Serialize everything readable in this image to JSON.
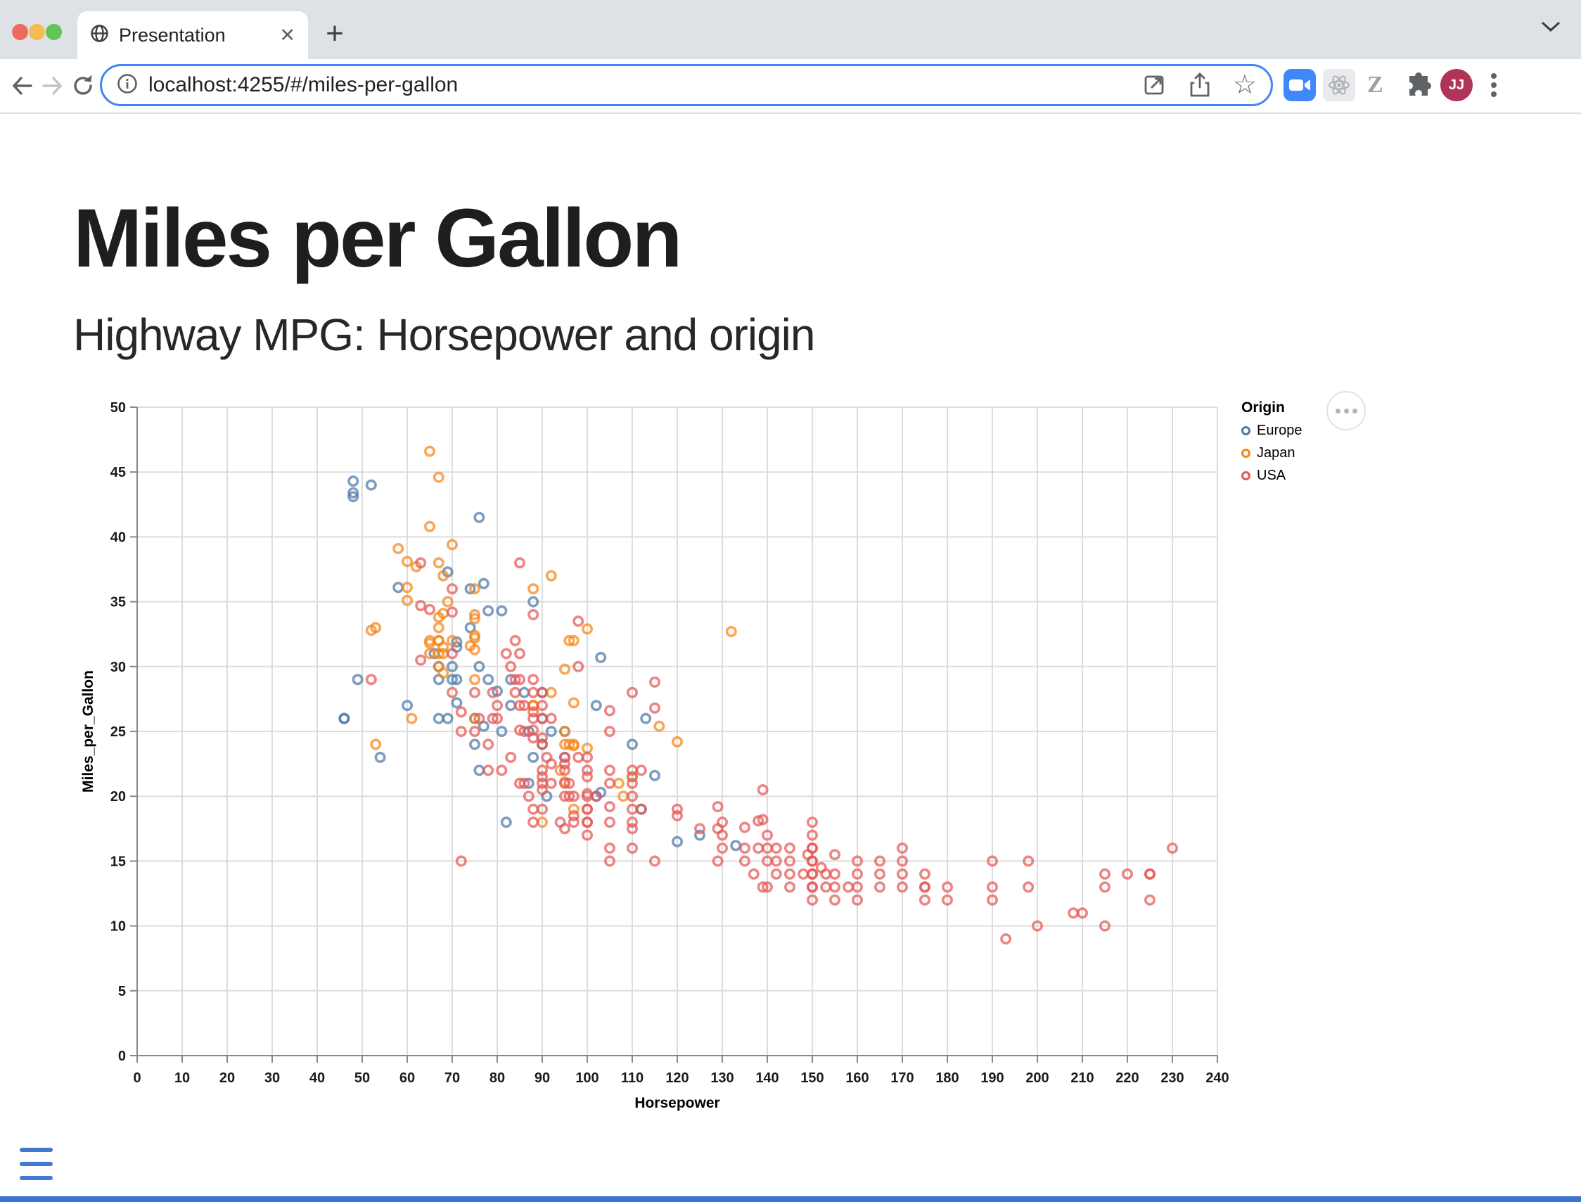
{
  "browser": {
    "tab_title": "Presentation",
    "close_glyph": "✕",
    "newtab_glyph": "+",
    "url": "localhost:4255/#/miles-per-gallon",
    "bookmark_star_glyph": "☆",
    "extension_z_letter": "Z",
    "avatar_initials": "JJ"
  },
  "slide": {
    "title": "Miles per Gallon",
    "subtitle": "Highway MPG: Horsepower and origin"
  },
  "colors": {
    "url_focus_ring": "#4285F4",
    "reveal_accent": "#4178D4",
    "progress_bar": "#3E74D1"
  },
  "chart_data": {
    "type": "scatter",
    "xlabel": "Horsepower",
    "ylabel": "Miles_per_Gallon",
    "xlim": [
      0,
      240
    ],
    "x_step": 10,
    "ylim": [
      0,
      50
    ],
    "y_step": 5,
    "grid": true,
    "legend": {
      "title": "Origin",
      "position": "right",
      "entries": [
        {
          "label": "Europe",
          "color": "#4C78A8"
        },
        {
          "label": "Japan",
          "color": "#F58518"
        },
        {
          "label": "USA",
          "color": "#E45756"
        }
      ]
    },
    "series": [
      {
        "name": "Europe",
        "color": "#4C78A8",
        "points": [
          [
            46,
            26
          ],
          [
            87,
            25
          ],
          [
            90,
            24
          ],
          [
            95,
            25
          ],
          [
            113,
            26
          ],
          [
            90,
            28
          ],
          [
            70,
            30
          ],
          [
            76,
            30
          ],
          [
            60,
            27
          ],
          [
            54,
            23
          ],
          [
            82,
            18
          ],
          [
            76,
            22
          ],
          [
            87,
            21
          ],
          [
            69,
            26
          ],
          [
            46,
            26
          ],
          [
            90,
            26
          ],
          [
            49,
            29
          ],
          [
            75,
            24
          ],
          [
            91,
            20
          ],
          [
            112,
            19
          ],
          [
            110,
            24
          ],
          [
            83,
            29
          ],
          [
            67,
            26
          ],
          [
            70,
            29
          ],
          [
            86,
            28
          ],
          [
            81,
            25
          ],
          [
            92,
            25
          ],
          [
            75,
            26
          ],
          [
            66,
            31
          ],
          [
            71,
            29
          ],
          [
            88,
            23
          ],
          [
            83,
            27
          ],
          [
            78,
            29
          ],
          [
            102,
            20
          ],
          [
            133,
            16.2
          ],
          [
            115,
            21.6
          ],
          [
            110,
            21.5
          ],
          [
            48,
            43.1
          ],
          [
            103,
            20.3
          ],
          [
            120,
            16.5
          ],
          [
            125,
            17
          ],
          [
            71,
            31.5
          ],
          [
            78,
            34.3
          ],
          [
            71,
            31.9
          ],
          [
            67,
            30
          ],
          [
            71,
            27.2
          ],
          [
            48,
            43.4
          ],
          [
            77,
            36.4
          ],
          [
            77,
            25.4
          ],
          [
            76,
            41.5
          ],
          [
            88,
            35
          ],
          [
            74,
            33
          ],
          [
            58,
            36.1
          ],
          [
            48,
            44.3
          ],
          [
            52,
            44
          ],
          [
            81,
            34.3
          ],
          [
            80,
            28.1
          ],
          [
            103,
            30.7
          ],
          [
            69,
            37.3
          ],
          [
            74,
            36
          ],
          [
            67,
            29
          ],
          [
            102,
            27
          ],
          [
            95,
            23
          ]
        ]
      },
      {
        "name": "Japan",
        "color": "#F58518",
        "points": [
          [
            95,
            24
          ],
          [
            88,
            27
          ],
          [
            88,
            27
          ],
          [
            95,
            25
          ],
          [
            65,
            31
          ],
          [
            65,
            32
          ],
          [
            69,
            35
          ],
          [
            97,
            19
          ],
          [
            92,
            28
          ],
          [
            88,
            27
          ],
          [
            90,
            18
          ],
          [
            94,
            22
          ],
          [
            108,
            20
          ],
          [
            67,
            31
          ],
          [
            75,
            29
          ],
          [
            53,
            24
          ],
          [
            61,
            26
          ],
          [
            97,
            32
          ],
          [
            67,
            32
          ],
          [
            53,
            33
          ],
          [
            70,
            32
          ],
          [
            96,
            24
          ],
          [
            97,
            24
          ],
          [
            68,
            31.5
          ],
          [
            75,
            26
          ],
          [
            52,
            32.8
          ],
          [
            70,
            39.4
          ],
          [
            60,
            36.1
          ],
          [
            75,
            32.2
          ],
          [
            97,
            27.2
          ],
          [
            95,
            21.1
          ],
          [
            97,
            23.9
          ],
          [
            110,
            21.5
          ],
          [
            68,
            29.5
          ],
          [
            65,
            31.8
          ],
          [
            65,
            46.6
          ],
          [
            65,
            40.8
          ],
          [
            67,
            44.6
          ],
          [
            60,
            38.1
          ],
          [
            75,
            31.3
          ],
          [
            92,
            37
          ],
          [
            75,
            32.4
          ],
          [
            68,
            34.1
          ],
          [
            67,
            30
          ],
          [
            67,
            33.8
          ],
          [
            60,
            35.1
          ],
          [
            132,
            32.7
          ],
          [
            100,
            23.7
          ],
          [
            58,
            39.1
          ],
          [
            75,
            33.7
          ],
          [
            62,
            37.7
          ],
          [
            67,
            38
          ],
          [
            95,
            29.8
          ],
          [
            74,
            31.6
          ],
          [
            120,
            24.2
          ],
          [
            116,
            25.4
          ],
          [
            100,
            32.9
          ],
          [
            68,
            37
          ],
          [
            68,
            31
          ],
          [
            88,
            36
          ],
          [
            75,
            36
          ],
          [
            75,
            34
          ],
          [
            67,
            33
          ],
          [
            67,
            32
          ],
          [
            96,
            32
          ],
          [
            107,
            21
          ]
        ]
      },
      {
        "name": "USA",
        "color": "#E45756",
        "points": [
          [
            130,
            18
          ],
          [
            165,
            15
          ],
          [
            150,
            18
          ],
          [
            150,
            16
          ],
          [
            140,
            17
          ],
          [
            198,
            15
          ],
          [
            220,
            14
          ],
          [
            215,
            14
          ],
          [
            225,
            14
          ],
          [
            190,
            15
          ],
          [
            170,
            15
          ],
          [
            160,
            14
          ],
          [
            150,
            15
          ],
          [
            225,
            14
          ],
          [
            215,
            10
          ],
          [
            200,
            10
          ],
          [
            210,
            11
          ],
          [
            193,
            9
          ],
          [
            165,
            14
          ],
          [
            175,
            14
          ],
          [
            153,
            14
          ],
          [
            150,
            14
          ],
          [
            180,
            12
          ],
          [
            170,
            13
          ],
          [
            175,
            13
          ],
          [
            165,
            13
          ],
          [
            175,
            12
          ],
          [
            150,
            13
          ],
          [
            153,
            13
          ],
          [
            208,
            11
          ],
          [
            155,
            12
          ],
          [
            160,
            13
          ],
          [
            190,
            12
          ],
          [
            145,
            13
          ],
          [
            150,
            12
          ],
          [
            198,
            13
          ],
          [
            158,
            13
          ],
          [
            215,
            13
          ],
          [
            225,
            12
          ],
          [
            175,
            13
          ],
          [
            145,
            15
          ],
          [
            230,
            16
          ],
          [
            140,
            13
          ],
          [
            148,
            14
          ],
          [
            150,
            16
          ],
          [
            142,
            16
          ],
          [
            145,
            14
          ],
          [
            152,
            14.5
          ],
          [
            170,
            16
          ],
          [
            190,
            13
          ],
          [
            155,
            13
          ],
          [
            142,
            15
          ],
          [
            150,
            14
          ],
          [
            160,
            15
          ],
          [
            150,
            17
          ],
          [
            145,
            16
          ],
          [
            140,
            15
          ],
          [
            160,
            12
          ],
          [
            170,
            14
          ],
          [
            155,
            14
          ],
          [
            140,
            16
          ],
          [
            130,
            17
          ],
          [
            135,
            16
          ],
          [
            150,
            15
          ],
          [
            180,
            13
          ],
          [
            149,
            15.5
          ],
          [
            155,
            15.5
          ],
          [
            142,
            14
          ],
          [
            139,
            13
          ],
          [
            150,
            13
          ],
          [
            100,
            19
          ],
          [
            105,
            16
          ],
          [
            100,
            17
          ],
          [
            100,
            18
          ],
          [
            105,
            18
          ],
          [
            100,
            18
          ],
          [
            100,
            19
          ],
          [
            110,
            18
          ],
          [
            110,
            19
          ],
          [
            129,
            15
          ],
          [
            115,
            15
          ],
          [
            112,
            19
          ],
          [
            110,
            16
          ],
          [
            105,
            15
          ],
          [
            139,
            20.5
          ],
          [
            129,
            19.2
          ],
          [
            138,
            18.1
          ],
          [
            135,
            17.6
          ],
          [
            139,
            18.2
          ],
          [
            120,
            18.5
          ],
          [
            105,
            22
          ],
          [
            100,
            22
          ],
          [
            110,
            21
          ],
          [
            120,
            19
          ],
          [
            105,
            25
          ],
          [
            110,
            17.5
          ],
          [
            130,
            16
          ],
          [
            129,
            17.5
          ],
          [
            138,
            16
          ],
          [
            135,
            15
          ],
          [
            125,
            17.5
          ],
          [
            105,
            19.2
          ],
          [
            100,
            20.2
          ],
          [
            105,
            26.6
          ],
          [
            115,
            28.8
          ],
          [
            115,
            26.8
          ],
          [
            110,
            28
          ],
          [
            100,
            23
          ],
          [
            102,
            20
          ],
          [
            100,
            21.5
          ],
          [
            137,
            14
          ],
          [
            110,
            22
          ],
          [
            100,
            20
          ],
          [
            105,
            21
          ],
          [
            110,
            20
          ],
          [
            95,
            21
          ],
          [
            98,
            23
          ],
          [
            95,
            22
          ],
          [
            97,
            18
          ],
          [
            85,
            21
          ],
          [
            90,
            21
          ],
          [
            88,
            19
          ],
          [
            90,
            28
          ],
          [
            75,
            25
          ],
          [
            97,
            18.5
          ],
          [
            88,
            18
          ],
          [
            86,
            21
          ],
          [
            90,
            24
          ],
          [
            95,
            23
          ],
          [
            78,
            24
          ],
          [
            79,
            26
          ],
          [
            80,
            26
          ],
          [
            83,
            23
          ],
          [
            78,
            22
          ],
          [
            96,
            20
          ],
          [
            90,
            21.5
          ],
          [
            92,
            22.5
          ],
          [
            95,
            22.5
          ],
          [
            81,
            22
          ],
          [
            90,
            20.5
          ],
          [
            92,
            21
          ],
          [
            72,
            26.5
          ],
          [
            85,
            38
          ],
          [
            88,
            26.5
          ],
          [
            90,
            24.5
          ],
          [
            85,
            29
          ],
          [
            84,
            32
          ],
          [
            84,
            28
          ],
          [
            88,
            26
          ],
          [
            86,
            25
          ],
          [
            85,
            27
          ],
          [
            88,
            29
          ],
          [
            88,
            28
          ],
          [
            88,
            34
          ],
          [
            85,
            31
          ],
          [
            84,
            29
          ],
          [
            90,
            27
          ],
          [
            92,
            26
          ],
          [
            90,
            26
          ],
          [
            86,
            27
          ],
          [
            79,
            28
          ],
          [
            82,
            31
          ],
          [
            85,
            25.1
          ],
          [
            88,
            24.5
          ],
          [
            88,
            25.1
          ],
          [
            95,
            17.5
          ],
          [
            90,
            19
          ],
          [
            75,
            28
          ],
          [
            70,
            31
          ],
          [
            70,
            34.2
          ],
          [
            63,
            38
          ],
          [
            63,
            34.7
          ],
          [
            65,
            34.4
          ],
          [
            63,
            30.5
          ],
          [
            70,
            28
          ],
          [
            70,
            36
          ],
          [
            72,
            25
          ],
          [
            96,
            21
          ],
          [
            98,
            30
          ],
          [
            98,
            33.5
          ],
          [
            83,
            30
          ],
          [
            95,
            20
          ],
          [
            90,
            22
          ],
          [
            80,
            27
          ],
          [
            76,
            26
          ],
          [
            52,
            29
          ],
          [
            72,
            15
          ],
          [
            112,
            22
          ],
          [
            94,
            18
          ],
          [
            87,
            20
          ],
          [
            91,
            23
          ],
          [
            97,
            20
          ]
        ]
      }
    ]
  }
}
